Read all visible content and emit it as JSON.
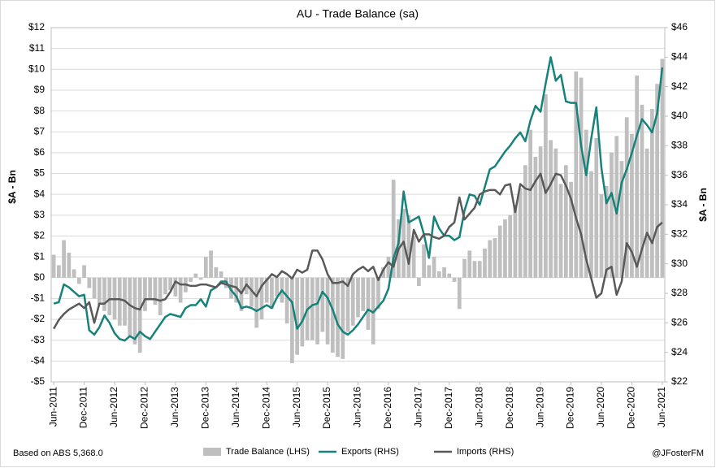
{
  "chart_data": {
    "type": "bar-line",
    "title": "AU - Trade Balance (sa)",
    "ylabel": "$A - Bn",
    "y2label": "$A - Bn",
    "footer_left": "Based on ABS 5,368.0",
    "footer_right": "@JFosterFM",
    "grid": true,
    "legend": "bottom",
    "categories": [
      "Jun-2011",
      null,
      null,
      null,
      null,
      null,
      "Dec-2011",
      null,
      null,
      null,
      null,
      null,
      "Jun-2012",
      null,
      null,
      null,
      null,
      null,
      "Dec-2012",
      null,
      null,
      null,
      null,
      null,
      "Jun-2013",
      null,
      null,
      null,
      null,
      null,
      "Dec-2013",
      null,
      null,
      null,
      null,
      null,
      "Jun-2014",
      null,
      null,
      null,
      null,
      null,
      "Dec-2014",
      null,
      null,
      null,
      null,
      null,
      "Jun-2015",
      null,
      null,
      null,
      null,
      null,
      "Dec-2015",
      null,
      null,
      null,
      null,
      null,
      "Jun-2016",
      null,
      null,
      null,
      null,
      null,
      "Dec-2016",
      null,
      null,
      null,
      null,
      null,
      "Jun-2017",
      null,
      null,
      null,
      null,
      null,
      "Dec-2017",
      null,
      null,
      null,
      null,
      null,
      "Jun-2018",
      null,
      null,
      null,
      null,
      null,
      "Dec-2018",
      null,
      null,
      null,
      null,
      null,
      "Jun-2019",
      null,
      null,
      null,
      null,
      null,
      "Dec-2019",
      null,
      null,
      null,
      null,
      null,
      "Jun-2020",
      null,
      null,
      null,
      null,
      null,
      "Dec-2020",
      null,
      null,
      null,
      null,
      null,
      "Jun-2021"
    ],
    "series": [
      {
        "name": "Trade Balance (LHS)",
        "kind": "bar",
        "axis": "y",
        "color": "#bfbfbf",
        "values": [
          1.1,
          0.6,
          1.8,
          1.2,
          0.4,
          -0.3,
          0.6,
          -0.5,
          -1.0,
          -1.3,
          -1.6,
          -1.8,
          -2.0,
          -2.3,
          -2.3,
          -2.8,
          -3.2,
          -3.6,
          -1.6,
          -1.0,
          -1.3,
          -1.8,
          -0.8,
          -0.6,
          -0.9,
          -1.2,
          -0.7,
          -0.2,
          0.2,
          -0.1,
          1.0,
          1.3,
          0.5,
          0.3,
          -0.5,
          -1.0,
          -1.2,
          -1.6,
          -0.8,
          -1.4,
          -2.4,
          -2.0,
          -1.2,
          -1.5,
          -0.9,
          -1.2,
          -2.2,
          -4.1,
          -3.7,
          -3.3,
          -3.0,
          -3.0,
          -3.2,
          -2.6,
          -3.2,
          -3.6,
          -3.8,
          -3.9,
          -2.6,
          -2.3,
          -1.9,
          -1.6,
          -2.5,
          -3.2,
          -1.5,
          0.5,
          1.0,
          4.7,
          2.8,
          3.3,
          3.0,
          2.0,
          -0.4,
          1.6,
          0.6,
          1.0,
          0.3,
          0.5,
          0.2,
          -0.2,
          -1.5,
          0.9,
          1.3,
          0.8,
          0.8,
          1.4,
          1.8,
          1.9,
          2.5,
          2.8,
          3.0,
          3.5,
          4.3,
          5.4,
          7.1,
          5.8,
          6.3,
          8.8,
          6.6,
          6.2,
          4.5,
          5.4,
          4.6,
          9.9,
          9.6,
          7.1,
          5.1,
          6.7,
          4.0,
          4.4,
          6.0,
          6.8,
          5.6,
          7.7,
          6.9,
          9.7,
          8.3,
          6.2,
          8.1,
          9.3,
          10.5
        ]
      },
      {
        "name": "Exports (RHS)",
        "kind": "line",
        "axis": "y2",
        "color": "#17827a",
        "values": [
          27.3,
          27.4,
          28.6,
          28.4,
          28.1,
          27.8,
          27.9,
          25.5,
          25.2,
          25.7,
          26.5,
          26.0,
          25.3,
          24.9,
          24.8,
          25.1,
          24.9,
          25.4,
          25.1,
          24.9,
          25.4,
          25.9,
          26.4,
          26.6,
          26.5,
          26.4,
          27.0,
          27.2,
          27.2,
          27.6,
          27.1,
          28.2,
          28.4,
          28.8,
          28.8,
          28.2,
          27.8,
          27.0,
          27.1,
          27.0,
          26.8,
          27.0,
          27.2,
          27.0,
          27.7,
          28.2,
          27.8,
          27.4,
          25.6,
          26.1,
          26.9,
          27.2,
          27.3,
          28.1,
          27.7,
          26.9,
          25.9,
          25.4,
          25.2,
          25.5,
          25.9,
          26.4,
          26.9,
          26.7,
          27.1,
          27.5,
          28.3,
          30.4,
          31.4,
          34.9,
          32.8,
          33.0,
          33.2,
          32.0,
          30.4,
          33.2,
          32.4,
          31.9,
          31.9,
          31.6,
          31.8,
          33.6,
          34.7,
          34.6,
          34.0,
          35.2,
          36.4,
          36.6,
          37.1,
          37.6,
          38.0,
          38.5,
          38.9,
          38.3,
          39.7,
          40.7,
          40.3,
          42.2,
          44.0,
          42.4,
          42.8,
          41.0,
          40.9,
          40.9,
          38.0,
          36.0,
          38.5,
          40.6,
          36.5,
          34.1,
          34.8,
          33.4,
          35.5,
          36.4,
          37.5,
          38.7,
          39.8,
          39.4,
          38.9,
          40.2,
          43.3
        ]
      },
      {
        "name": "Imports (RHS)",
        "kind": "line",
        "axis": "y2",
        "color": "#595959",
        "values": [
          25.6,
          26.2,
          26.6,
          26.9,
          27.1,
          27.3,
          27.0,
          27.4,
          26.0,
          27.3,
          27.3,
          27.6,
          27.6,
          27.6,
          27.5,
          27.2,
          27.0,
          26.9,
          27.6,
          27.6,
          27.6,
          27.5,
          27.6,
          28.1,
          28.8,
          28.6,
          28.6,
          28.5,
          28.5,
          28.6,
          28.6,
          28.5,
          28.4,
          28.7,
          28.6,
          28.5,
          28.4,
          28.0,
          28.6,
          28.2,
          27.8,
          28.5,
          28.9,
          29.3,
          29.1,
          29.5,
          29.3,
          29.0,
          29.6,
          29.4,
          29.6,
          30.9,
          30.9,
          30.3,
          29.3,
          28.7,
          28.7,
          28.8,
          28.5,
          29.3,
          29.6,
          29.8,
          29.5,
          29.8,
          28.9,
          29.6,
          30.1,
          29.8,
          31.0,
          31.5,
          30.0,
          32.3,
          31.5,
          32.0,
          32.0,
          31.8,
          31.7,
          31.9,
          32.5,
          32.8,
          34.5,
          33.0,
          33.4,
          33.8,
          34.7,
          34.9,
          35.0,
          35.0,
          34.7,
          35.3,
          35.4,
          33.5,
          35.4,
          35.1,
          35.0,
          35.6,
          36.1,
          34.8,
          35.4,
          36.1,
          36.0,
          35.3,
          34.4,
          33.1,
          32.0,
          30.3,
          29.0,
          27.7,
          28.0,
          29.6,
          29.8,
          27.9,
          28.8,
          31.4,
          30.8,
          29.8,
          31.0,
          32.1,
          31.4,
          32.5,
          32.8
        ]
      }
    ],
    "ylim": [
      -5,
      12
    ],
    "yticks": [
      {
        "value": -5,
        "label": "-$5"
      },
      {
        "value": -4,
        "label": "-$4"
      },
      {
        "value": -3,
        "label": "-$3"
      },
      {
        "value": -2,
        "label": "-$2"
      },
      {
        "value": -1,
        "label": "-$1"
      },
      {
        "value": 0,
        "label": "$0"
      },
      {
        "value": 1,
        "label": "$1"
      },
      {
        "value": 2,
        "label": "$2"
      },
      {
        "value": 3,
        "label": "$3"
      },
      {
        "value": 4,
        "label": "$4"
      },
      {
        "value": 5,
        "label": "$5"
      },
      {
        "value": 6,
        "label": "$6"
      },
      {
        "value": 7,
        "label": "$7"
      },
      {
        "value": 8,
        "label": "$8"
      },
      {
        "value": 9,
        "label": "$9"
      },
      {
        "value": 10,
        "label": "$10"
      },
      {
        "value": 11,
        "label": "$11"
      },
      {
        "value": 12,
        "label": "$12"
      }
    ],
    "y2lim": [
      22,
      46
    ],
    "y2ticks": [
      {
        "value": 22,
        "label": "$22"
      },
      {
        "value": 24,
        "label": "$24"
      },
      {
        "value": 26,
        "label": "$26"
      },
      {
        "value": 28,
        "label": "$28"
      },
      {
        "value": 30,
        "label": "$30"
      },
      {
        "value": 32,
        "label": "$32"
      },
      {
        "value": 34,
        "label": "$34"
      },
      {
        "value": 36,
        "label": "$36"
      },
      {
        "value": 38,
        "label": "$38"
      },
      {
        "value": 40,
        "label": "$40"
      },
      {
        "value": 42,
        "label": "$42"
      },
      {
        "value": 44,
        "label": "$44"
      },
      {
        "value": 46,
        "label": "$46"
      }
    ]
  }
}
